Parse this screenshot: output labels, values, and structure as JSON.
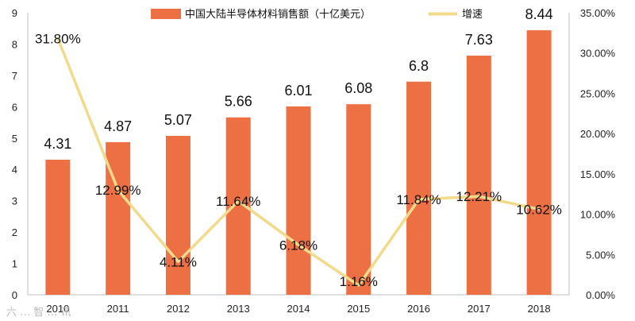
{
  "chart_data": {
    "type": "bar",
    "categories": [
      "2010",
      "2011",
      "2012",
      "2013",
      "2014",
      "2015",
      "2016",
      "2017",
      "2018"
    ],
    "series": [
      {
        "name": "中国大陆半导体材料销售额（十亿美元）",
        "type": "bar",
        "axis": "left",
        "values": [
          4.31,
          4.87,
          5.07,
          5.66,
          6.01,
          6.08,
          6.8,
          7.63,
          8.44
        ],
        "labels": [
          "4.31",
          "4.87",
          "5.07",
          "5.66",
          "6.01",
          "6.08",
          "6.8",
          "7.63",
          "8.44"
        ]
      },
      {
        "name": "增速",
        "type": "line",
        "axis": "right",
        "values": [
          31.8,
          12.99,
          4.11,
          11.64,
          6.18,
          1.16,
          11.84,
          12.21,
          10.62
        ],
        "labels": [
          "31.80%",
          "12.99%",
          "4.11%",
          "11.64%",
          "6.18%",
          "1.16%",
          "11.84%",
          "12.21%",
          "10.62%"
        ]
      }
    ],
    "y_left": {
      "ylim": [
        0,
        9
      ],
      "ticks": [
        "0",
        "1",
        "2",
        "3",
        "4",
        "5",
        "6",
        "7",
        "8",
        "9"
      ]
    },
    "y_right": {
      "ylim": [
        0,
        35
      ],
      "ticks": [
        "0.00%",
        "5.00%",
        "10.00%",
        "15.00%",
        "20.00%",
        "25.00%",
        "30.00%",
        "35.00%"
      ]
    },
    "legend": "top",
    "grid": false,
    "colors": {
      "bar": "#EC7044",
      "line": "#F2DA8B"
    }
  },
  "watermark": "六 … 智 … 讯"
}
